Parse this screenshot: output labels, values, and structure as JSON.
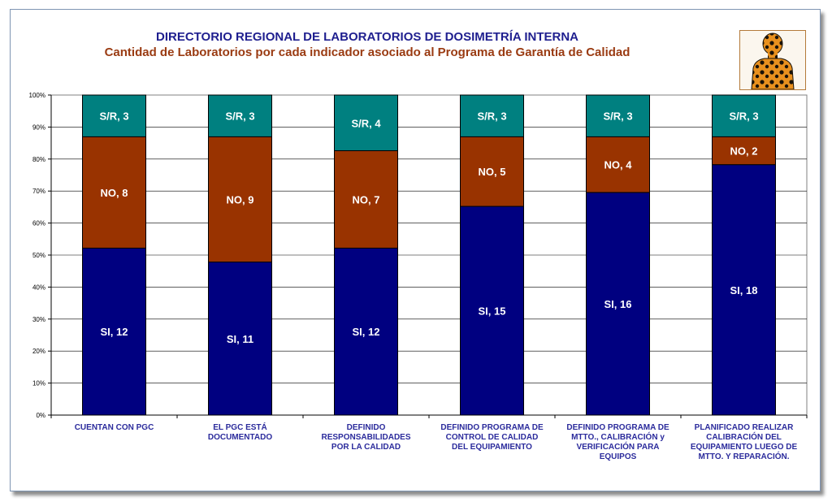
{
  "header": {
    "title": "DIRECTORIO REGIONAL DE LABORATORIOS DE DOSIMETRÍA INTERNA",
    "subtitle": "Cantidad de Laboratorios por cada indicador asociado al Programa de Garantía de Calidad"
  },
  "logo": {
    "icon": "radiation-person-icon"
  },
  "colors": {
    "si": "#000080",
    "no": "#993300",
    "sr": "#008080",
    "category_text": "#2b2b9c",
    "title": "#1f1f8f",
    "subtitle": "#9a3b12"
  },
  "chart_data": {
    "type": "bar",
    "stacked": "percent",
    "categories": [
      [
        "CUENTAN CON PGC"
      ],
      [
        "EL PGC ESTÁ",
        "DOCUMENTADO"
      ],
      [
        "DEFINIDO",
        "RESPONSABILIDADES",
        "POR LA CALIDAD"
      ],
      [
        "DEFINIDO PROGRAMA DE",
        "CONTROL DE CALIDAD",
        "DEL EQUIPAMIENTO"
      ],
      [
        "DEFINIDO PROGRAMA DE",
        "MTTO., CALIBRACIÓN y",
        "VERIFICACIÓN PARA",
        "EQUIPOS"
      ],
      [
        "PLANIFICADO REALIZAR",
        "CALIBRACIÓN DEL",
        "EQUIPAMIENTO LUEGO DE",
        "MTTO. Y REPARACIÓN."
      ]
    ],
    "series": [
      {
        "name": "SI",
        "values": [
          12,
          11,
          12,
          15,
          16,
          18
        ],
        "labels": [
          "SI, 12",
          "SI, 11",
          "SI, 12",
          "SI, 15",
          "SI, 16",
          "SI, 18"
        ]
      },
      {
        "name": "NO",
        "values": [
          8,
          9,
          7,
          5,
          4,
          2
        ],
        "labels": [
          "NO, 8",
          "NO, 9",
          "NO, 7",
          "NO, 5",
          "NO, 4",
          "NO, 2"
        ]
      },
      {
        "name": "S/R",
        "values": [
          3,
          3,
          4,
          3,
          3,
          3
        ],
        "labels": [
          "S/R, 3",
          "S/R, 3",
          "S/R, 4",
          "S/R, 3",
          "S/R, 3",
          "S/R, 3"
        ]
      }
    ],
    "yticks": [
      "0%",
      "10%",
      "20%",
      "30%",
      "40%",
      "50%",
      "60%",
      "70%",
      "80%",
      "90%",
      "100%"
    ],
    "ylim": [
      0,
      100
    ],
    "grid": true,
    "legend": "none"
  }
}
